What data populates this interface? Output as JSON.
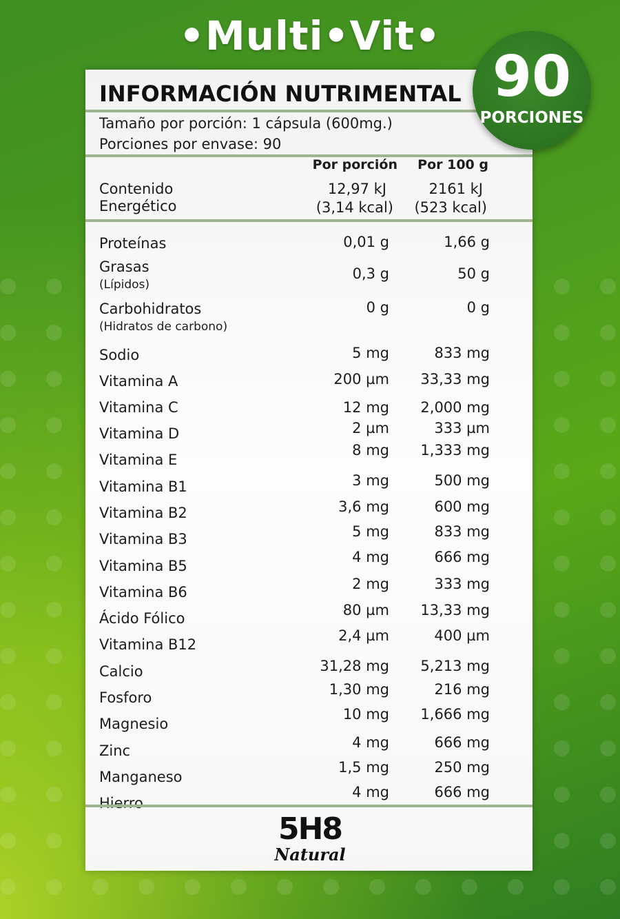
{
  "brand": {
    "title": "•Multi•Vit•"
  },
  "badge": {
    "number": "90",
    "label": "PORCIONES"
  },
  "panel": {
    "title": "INFORMACIÓN NUTRIMENTAL",
    "serving_size": "Tamaño por porción: 1 cápsula (600mg.)",
    "servings_per_container": "Porciones por envase: 90",
    "col_per_serving": "Por porción",
    "col_per_100g": "Por 100 g",
    "energy": {
      "label_line1": "Contenido",
      "label_line2": "Energético",
      "per_serving_kj": "12,97 kJ",
      "per_serving_kcal": "(3,14 kcal)",
      "per_100g_kj": "2161 kJ",
      "per_100g_kcal": "(523 kcal)"
    },
    "rows": [
      {
        "name": "Proteínas",
        "sub": "",
        "per_serving": "0,01 g",
        "per_100g": "1,66 g"
      },
      {
        "name": "Grasas",
        "sub": "(Lípidos)",
        "per_serving": "0,3 g",
        "per_100g": "50 g"
      },
      {
        "name": "Carbohidratos",
        "sub": "(Hidratos de carbono)",
        "per_serving": "0 g",
        "per_100g": "0 g"
      },
      {
        "name": "Sodio",
        "sub": "",
        "per_serving": "5 mg",
        "per_100g": "833 mg"
      },
      {
        "name": "Vitamina A",
        "sub": "",
        "per_serving": "200 µm",
        "per_100g": "33,33 mg"
      },
      {
        "name": "Vitamina C",
        "sub": "",
        "per_serving": "12 mg",
        "per_100g": "2,000 mg"
      },
      {
        "name": "Vitamina D",
        "sub": "",
        "per_serving": "2 µm",
        "per_100g": "333 µm"
      },
      {
        "name": "Vitamina E",
        "sub": "",
        "per_serving": "8 mg",
        "per_100g": "1,333 mg"
      },
      {
        "name": "Vitamina B1",
        "sub": "",
        "per_serving": "3 mg",
        "per_100g": "500 mg"
      },
      {
        "name": "Vitamina B2",
        "sub": "",
        "per_serving": "3,6 mg",
        "per_100g": "600 mg"
      },
      {
        "name": "Vitamina B3",
        "sub": "",
        "per_serving": "5 mg",
        "per_100g": "833 mg"
      },
      {
        "name": "Vitamina B5",
        "sub": "",
        "per_serving": "4 mg",
        "per_100g": "666 mg"
      },
      {
        "name": "Vitamina B6",
        "sub": "",
        "per_serving": "2 mg",
        "per_100g": "333 mg"
      },
      {
        "name": "Ácido Fólico",
        "sub": "",
        "per_serving": "80 µm",
        "per_100g": "13,33 mg"
      },
      {
        "name": "Vitamina B12",
        "sub": "",
        "per_serving": "2,4 µm",
        "per_100g": "400 µm"
      },
      {
        "name": "Calcio",
        "sub": "",
        "per_serving": "31,28 mg",
        "per_100g": "5,213 mg"
      },
      {
        "name": "Fosforo",
        "sub": "",
        "per_serving": "1,30 mg",
        "per_100g": "216 mg"
      },
      {
        "name": "Magnesio",
        "sub": "",
        "per_serving": "10 mg",
        "per_100g": "1,666 mg"
      },
      {
        "name": "Zinc",
        "sub": "",
        "per_serving": "4 mg",
        "per_100g": "666 mg"
      },
      {
        "name": "Manganeso",
        "sub": "",
        "per_serving": "1,5 mg",
        "per_100g": "250 mg"
      },
      {
        "name": "Hierro",
        "sub": "",
        "per_serving": "4 mg",
        "per_100g": "666 mg"
      }
    ]
  },
  "logo": {
    "main": "5H8",
    "sub": "Natural"
  }
}
